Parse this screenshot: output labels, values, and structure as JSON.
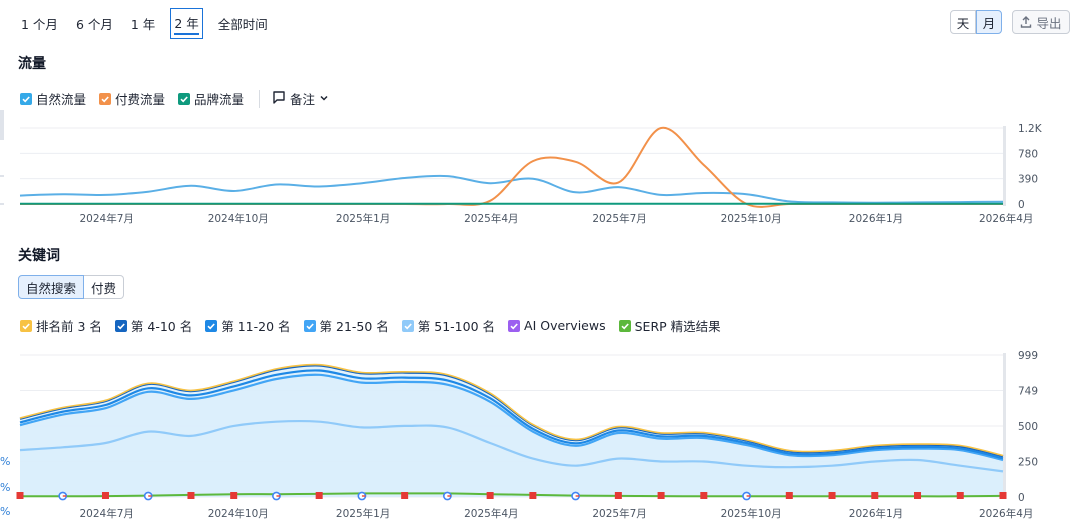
{
  "range_tabs": [
    {
      "label": "1 个月",
      "active": false
    },
    {
      "label": "6 个月",
      "active": false
    },
    {
      "label": "1 年",
      "active": false
    },
    {
      "label": "2 年",
      "active": true
    },
    {
      "label": "全部时间",
      "active": false
    }
  ],
  "granularity": {
    "day": "天",
    "month": "月",
    "active": "月"
  },
  "export_label": "导出",
  "traffic": {
    "title": "流量",
    "legend": [
      {
        "label": "自然流量",
        "color": "#35a9e8",
        "checked": true
      },
      {
        "label": "付费流量",
        "color": "#f2914a",
        "checked": true
      },
      {
        "label": "品牌流量",
        "color": "#0f9a7e",
        "checked": true
      }
    ],
    "note_label": "备注"
  },
  "keywords": {
    "title": "关键词",
    "toggle": [
      {
        "label": "自然搜索",
        "active": true
      },
      {
        "label": "付费",
        "active": false
      }
    ],
    "legend": [
      {
        "label": "排名前 3 名",
        "color": "#f7c244"
      },
      {
        "label": "第 4-10 名",
        "color": "#1565c0"
      },
      {
        "label": "第 11-20 名",
        "color": "#1e88e5"
      },
      {
        "label": "第 21-50 名",
        "color": "#42a5f5"
      },
      {
        "label": "第 51-100 名",
        "color": "#90caf9"
      },
      {
        "label": "AI Overviews",
        "color": "#9c5ff0"
      },
      {
        "label": "SERP 精选结果",
        "color": "#5cb83c"
      }
    ]
  },
  "left_stub_pcts": [
    "%",
    "%",
    "%"
  ],
  "chart_data": [
    {
      "type": "line",
      "x": [
        "2024-05",
        "2024-06",
        "2024-07",
        "2024-08",
        "2024-09",
        "2024-10",
        "2024-11",
        "2024-12",
        "2025-01",
        "2025-02",
        "2025-03",
        "2025-04",
        "2025-05",
        "2025-06",
        "2025-07",
        "2025-08",
        "2025-09",
        "2025-10",
        "2025-11",
        "2025-12",
        "2026-01",
        "2026-02",
        "2026-03",
        "2026-04"
      ],
      "x_tick_labels": [
        "2024年7月",
        "2024年10月",
        "2025年1月",
        "2025年4月",
        "2025年7月",
        "2025年10月",
        "2026年1月",
        "2026年4月"
      ],
      "y_ticks": [
        "0",
        "390",
        "780",
        "1.2K"
      ],
      "ylim": [
        0,
        1170
      ],
      "grid": true,
      "series": [
        {
          "name": "自然流量",
          "color": "#5aafe6",
          "values": [
            130,
            150,
            140,
            190,
            280,
            200,
            300,
            270,
            320,
            400,
            430,
            320,
            390,
            180,
            260,
            140,
            170,
            150,
            40,
            25,
            20,
            25,
            30,
            35
          ]
        },
        {
          "name": "付费流量",
          "color": "#f2914a",
          "values": [
            0,
            0,
            0,
            0,
            0,
            0,
            0,
            0,
            0,
            0,
            0,
            50,
            660,
            650,
            330,
            1170,
            600,
            0,
            0,
            0,
            0,
            0,
            0,
            0
          ]
        },
        {
          "name": "品牌流量",
          "color": "#0f9a7e",
          "values": [
            5,
            5,
            5,
            5,
            5,
            5,
            5,
            5,
            5,
            5,
            5,
            5,
            5,
            5,
            5,
            5,
            5,
            5,
            5,
            5,
            5,
            5,
            5,
            5
          ]
        }
      ]
    },
    {
      "type": "area",
      "stacked": true,
      "x": [
        "2024-05",
        "2024-06",
        "2024-07",
        "2024-08",
        "2024-09",
        "2024-10",
        "2024-11",
        "2024-12",
        "2025-01",
        "2025-02",
        "2025-03",
        "2025-04",
        "2025-05",
        "2025-06",
        "2025-07",
        "2025-08",
        "2025-09",
        "2025-10",
        "2025-11",
        "2025-12",
        "2026-01",
        "2026-02",
        "2026-03",
        "2026-04"
      ],
      "x_tick_labels": [
        "2024年7月",
        "2024年10月",
        "2025年1月",
        "2025年4月",
        "2025年7月",
        "2025年10月",
        "2026年1月",
        "2026年4月"
      ],
      "y_ticks": [
        "0",
        "250",
        "500",
        "749",
        "999"
      ],
      "ylim": [
        0,
        999
      ],
      "grid": true,
      "series": [
        {
          "name": "排名前 3 名",
          "color": "#f7c244",
          "values": [
            5,
            5,
            5,
            5,
            5,
            5,
            6,
            6,
            6,
            6,
            6,
            6,
            5,
            5,
            5,
            5,
            5,
            5,
            5,
            5,
            5,
            5,
            5,
            5
          ]
        },
        {
          "name": "第 4-10 名",
          "color": "#1565c0",
          "values": [
            25,
            25,
            28,
            30,
            30,
            32,
            35,
            35,
            35,
            35,
            35,
            30,
            25,
            22,
            22,
            20,
            18,
            17,
            15,
            15,
            15,
            15,
            15,
            15
          ]
        },
        {
          "name": "第 11-20 名",
          "color": "#1e88e5",
          "values": [
            20,
            20,
            22,
            25,
            25,
            28,
            30,
            30,
            30,
            30,
            30,
            25,
            20,
            18,
            18,
            16,
            15,
            15,
            12,
            12,
            12,
            12,
            12,
            12
          ]
        },
        {
          "name": "第 21-50 名",
          "color": "#42a5f5",
          "values": [
            175,
            230,
            245,
            280,
            260,
            250,
            300,
            330,
            315,
            310,
            300,
            290,
            190,
            140,
            180,
            160,
            165,
            145,
            85,
            75,
            80,
            80,
            110,
            80
          ]
        },
        {
          "name": "第 51-100 名",
          "color": "#90caf9",
          "values": [
            330,
            350,
            380,
            460,
            430,
            500,
            530,
            530,
            490,
            500,
            490,
            380,
            270,
            220,
            270,
            250,
            250,
            220,
            210,
            220,
            250,
            260,
            220,
            180
          ]
        },
        {
          "name": "AI Overviews",
          "color": "#9c5ff0",
          "values": [
            0,
            0,
            0,
            0,
            0,
            0,
            0,
            0,
            0,
            0,
            0,
            0,
            0,
            0,
            0,
            0,
            0,
            0,
            0,
            0,
            0,
            0,
            0,
            0
          ]
        },
        {
          "name": "SERP 精选结果",
          "color": "#5cb83c",
          "values": [
            5,
            5,
            6,
            10,
            15,
            20,
            20,
            22,
            25,
            25,
            25,
            20,
            15,
            10,
            8,
            6,
            5,
            5,
            5,
            5,
            5,
            5,
            5,
            8
          ]
        }
      ]
    }
  ]
}
